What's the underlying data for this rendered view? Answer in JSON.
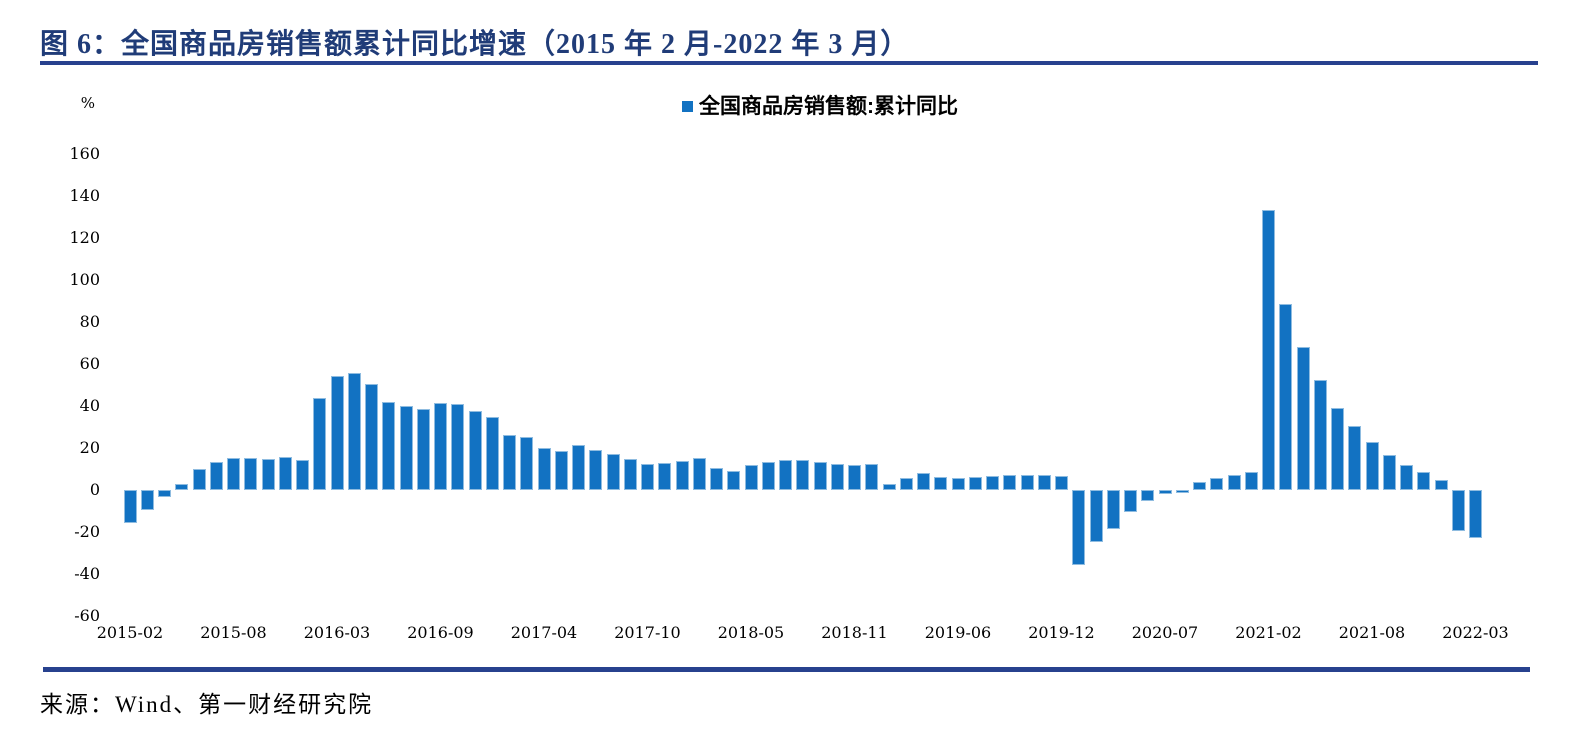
{
  "header": {
    "title": "图 6：全国商品房销售额累计同比增速（2015 年 2 月-2022 年 3 月）"
  },
  "footer": {
    "source": "来源：Wind、第一财经研究院"
  },
  "colors": {
    "title_navy": "#203C78",
    "rule_navy": "#27418E",
    "bar_fill": "#1272C2",
    "bar_border": "#8FBCE0",
    "legend_marker": "#1272C2"
  },
  "chart_data": {
    "type": "bar",
    "title": "全国商品房销售额累计同比增速（2015 年 2 月-2022 年 3 月）",
    "legend": [
      "全国商品房销售额:累计同比"
    ],
    "legend_position": "top-center",
    "unit": "%",
    "grid": false,
    "ylim": [
      -60,
      170
    ],
    "y_ticks": [
      160,
      140,
      120,
      100,
      80,
      60,
      40,
      20,
      0,
      -20,
      -40,
      -60
    ],
    "x": [
      "2015-02",
      "2015-03",
      "2015-04",
      "2015-05",
      "2015-06",
      "2015-07",
      "2015-08",
      "2015-09",
      "2015-10",
      "2015-11",
      "2015-12",
      "2016-02",
      "2016-03",
      "2016-04",
      "2016-05",
      "2016-06",
      "2016-07",
      "2016-08",
      "2016-09",
      "2016-10",
      "2016-11",
      "2016-12",
      "2017-02",
      "2017-03",
      "2017-04",
      "2017-05",
      "2017-06",
      "2017-07",
      "2017-08",
      "2017-09",
      "2017-10",
      "2017-11",
      "2017-12",
      "2018-02",
      "2018-03",
      "2018-04",
      "2018-05",
      "2018-06",
      "2018-07",
      "2018-08",
      "2018-09",
      "2018-10",
      "2018-11",
      "2018-12",
      "2019-02",
      "2019-03",
      "2019-04",
      "2019-05",
      "2019-06",
      "2019-07",
      "2019-08",
      "2019-09",
      "2019-10",
      "2019-11",
      "2019-12",
      "2020-02",
      "2020-03",
      "2020-04",
      "2020-05",
      "2020-06",
      "2020-07",
      "2020-08",
      "2020-09",
      "2020-10",
      "2020-11",
      "2020-12",
      "2021-02",
      "2021-03",
      "2021-04",
      "2021-05",
      "2021-06",
      "2021-07",
      "2021-08",
      "2021-09",
      "2021-10",
      "2021-11",
      "2021-12",
      "2022-02",
      "2022-03"
    ],
    "values": [
      -15.8,
      -9.3,
      -3.1,
      3.1,
      10.0,
      13.4,
      15.3,
      15.3,
      14.9,
      15.6,
      14.4,
      43.6,
      54.1,
      55.9,
      50.7,
      42.1,
      39.8,
      38.7,
      41.3,
      41.2,
      37.5,
      34.8,
      26.0,
      25.1,
      20.1,
      18.6,
      21.5,
      18.9,
      17.2,
      14.6,
      12.6,
      12.7,
      13.7,
      15.3,
      10.4,
      9.0,
      11.8,
      13.2,
      14.4,
      14.5,
      13.3,
      12.5,
      12.1,
      12.2,
      2.8,
      5.6,
      8.1,
      6.1,
      5.6,
      6.2,
      6.7,
      7.1,
      7.3,
      7.3,
      6.5,
      -35.9,
      -24.7,
      -18.6,
      -10.6,
      -5.4,
      -2.1,
      -1.6,
      3.8,
      5.8,
      7.2,
      8.7,
      133.4,
      88.5,
      68.2,
      52.4,
      38.9,
      30.7,
      22.8,
      16.6,
      11.8,
      8.5,
      4.8,
      -19.3,
      -22.7
    ],
    "x_tick_indices": [
      0,
      6,
      12,
      18,
      24,
      30,
      36,
      42,
      48,
      54,
      60,
      66,
      72,
      78
    ],
    "x_tick_labels": [
      "2015-02",
      "2015-08",
      "2016-03",
      "2016-09",
      "2017-04",
      "2017-10",
      "2018-05",
      "2018-11",
      "2019-06",
      "2019-12",
      "2020-07",
      "2021-02",
      "2021-08",
      "2022-03"
    ]
  }
}
